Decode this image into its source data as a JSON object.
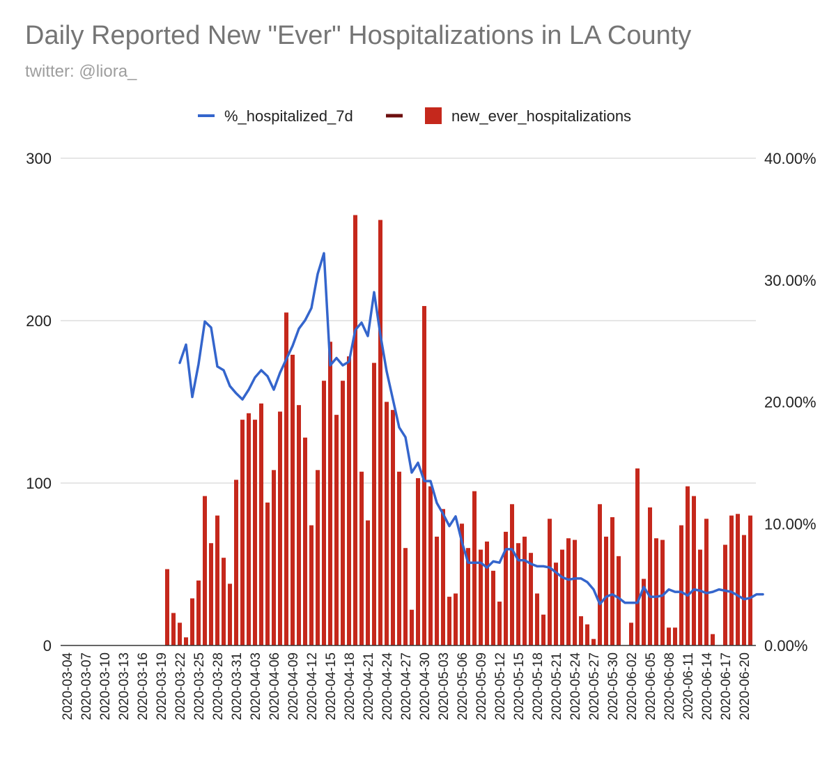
{
  "chart_data": {
    "type": "bar",
    "title": "Daily Reported New \"Ever\" Hospitalizations in LA County",
    "subtitle": "twitter: @liora_",
    "start_date": "2020-03-04",
    "end_date": "2020-06-20",
    "x_tick_labels": [
      "2020-03-04",
      "2020-03-07",
      "2020-03-10",
      "2020-03-13",
      "2020-03-16",
      "2020-03-19",
      "2020-03-22",
      "2020-03-25",
      "2020-03-28",
      "2020-03-31",
      "2020-04-03",
      "2020-04-06",
      "2020-04-09",
      "2020-04-12",
      "2020-04-15",
      "2020-04-18",
      "2020-04-21",
      "2020-04-24",
      "2020-04-27",
      "2020-04-30",
      "2020-05-03",
      "2020-05-06",
      "2020-05-09",
      "2020-05-12",
      "2020-05-15",
      "2020-05-18",
      "2020-05-21",
      "2020-05-24",
      "2020-05-27",
      "2020-05-30",
      "2020-06-02",
      "2020-06-05",
      "2020-06-08",
      "2020-06-11",
      "2020-06-14",
      "2020-06-17",
      "2020-06-20"
    ],
    "y_left": {
      "ticks": [
        "0",
        "100",
        "200",
        "300"
      ],
      "min": 0,
      "max": 300
    },
    "y_right": {
      "ticks": [
        "0.00%",
        "10.00%",
        "20.00%",
        "30.00%",
        "40.00%"
      ],
      "min": 0,
      "max": 40
    },
    "legend": {
      "position": "top"
    },
    "series": [
      {
        "name": "%_hospitalized_7d",
        "type": "line",
        "axis": "right",
        "color": "#3465cc",
        "start_date": "2020-03-22",
        "values": [
          23.2,
          24.7,
          20.4,
          23.1,
          26.6,
          26.1,
          22.9,
          22.6,
          21.3,
          20.7,
          20.2,
          21.0,
          22.0,
          22.6,
          22.1,
          21.0,
          22.4,
          23.5,
          24.6,
          26.0,
          26.7,
          27.7,
          30.5,
          32.2,
          23.0,
          23.6,
          23.0,
          23.3,
          25.9,
          26.5,
          25.4,
          29.0,
          25.5,
          22.5,
          20.2,
          17.9,
          17.1,
          14.2,
          15.0,
          13.5,
          13.5,
          11.7,
          10.8,
          9.8,
          10.6,
          8.5,
          6.8,
          6.8,
          6.8,
          6.4,
          6.9,
          6.8,
          7.9,
          7.9,
          7.0,
          7.0,
          6.7,
          6.5,
          6.5,
          6.4,
          6.0,
          5.6,
          5.4,
          5.5,
          5.5,
          5.2,
          4.6,
          3.4,
          4.0,
          4.2,
          3.9,
          3.5,
          3.5,
          3.5,
          4.8,
          4.0,
          4.0,
          4.1,
          4.6,
          4.4,
          4.4,
          4.1,
          4.6,
          4.5,
          4.3,
          4.4,
          4.6,
          4.5,
          4.4,
          4.1,
          3.8,
          3.9,
          4.2,
          4.2
        ]
      },
      {
        "name": "(unnamed)",
        "type": "line",
        "axis": "left",
        "color": "#6d0e0e",
        "values": []
      },
      {
        "name": "new_ever_hospitalizations",
        "type": "bar",
        "axis": "left",
        "color": "#c5281c",
        "start_date": "2020-03-20",
        "values": [
          47,
          20,
          14,
          5,
          29,
          40,
          92,
          63,
          80,
          54,
          38,
          102,
          139,
          143,
          139,
          149,
          88,
          108,
          144,
          205,
          179,
          148,
          128,
          74,
          108,
          163,
          187,
          142,
          163,
          178,
          265,
          107,
          77,
          174,
          262,
          150,
          145,
          107,
          60,
          22,
          103,
          209,
          98,
          67,
          84,
          30,
          32,
          75,
          60,
          95,
          59,
          64,
          46,
          27,
          70,
          87,
          63,
          67,
          57,
          32,
          19,
          78,
          51,
          59,
          66,
          65,
          18,
          13,
          4,
          87,
          67,
          79,
          55,
          0,
          14,
          109,
          41,
          85,
          66,
          65,
          11,
          11,
          74,
          98,
          92,
          59,
          78,
          7,
          0,
          62,
          80,
          81,
          68,
          80
        ]
      }
    ]
  }
}
